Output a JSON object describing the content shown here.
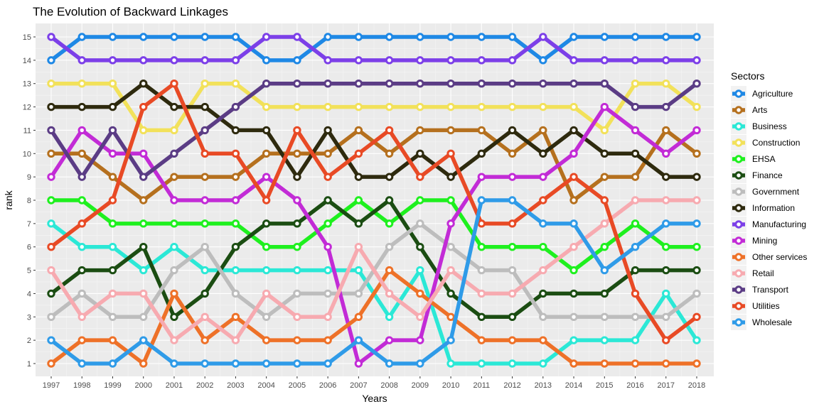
{
  "chart_data": {
    "type": "line",
    "title": "The Evolution of Backward Linkages",
    "xlabel": "Years",
    "ylabel": "rank",
    "x": [
      1997,
      1998,
      1999,
      2000,
      2001,
      2002,
      2003,
      2004,
      2005,
      2006,
      2007,
      2008,
      2009,
      2010,
      2011,
      2012,
      2013,
      2014,
      2015,
      2016,
      2017,
      2018
    ],
    "ylim": [
      1,
      15
    ],
    "yticks": [
      1,
      2,
      3,
      4,
      5,
      6,
      7,
      8,
      9,
      10,
      11,
      12,
      13,
      14,
      15
    ],
    "grid": true,
    "legend_title": "Sectors",
    "legend_position": "right",
    "series": [
      {
        "name": "Agriculture",
        "color": "#1E88E5",
        "values": [
          14,
          15,
          15,
          15,
          15,
          15,
          15,
          14,
          14,
          15,
          15,
          15,
          15,
          15,
          15,
          15,
          14,
          15,
          15,
          15,
          15,
          15
        ]
      },
      {
        "name": "Arts",
        "color": "#B5701E",
        "values": [
          10,
          10,
          9,
          8,
          9,
          9,
          9,
          10,
          10,
          10,
          11,
          10,
          11,
          11,
          11,
          10,
          11,
          8,
          9,
          9,
          11,
          10
        ]
      },
      {
        "name": "Business",
        "color": "#2BE8D6",
        "values": [
          7,
          6,
          6,
          5,
          6,
          5,
          5,
          5,
          5,
          5,
          5,
          3,
          5,
          1,
          1,
          1,
          1,
          2,
          2,
          2,
          4,
          2
        ]
      },
      {
        "name": "Construction",
        "color": "#F2E15A",
        "values": [
          13,
          13,
          13,
          11,
          11,
          13,
          13,
          12,
          12,
          12,
          12,
          12,
          12,
          12,
          12,
          12,
          12,
          12,
          11,
          13,
          13,
          12
        ]
      },
      {
        "name": "EHSA",
        "color": "#1EF01E",
        "values": [
          8,
          8,
          7,
          7,
          7,
          7,
          7,
          6,
          6,
          7,
          8,
          7,
          8,
          8,
          6,
          6,
          6,
          5,
          6,
          7,
          6,
          6
        ]
      },
      {
        "name": "Finance",
        "color": "#1B4D12",
        "values": [
          4,
          5,
          5,
          6,
          3,
          4,
          6,
          7,
          7,
          8,
          7,
          8,
          6,
          4,
          3,
          3,
          4,
          4,
          4,
          5,
          5,
          5
        ]
      },
      {
        "name": "Government",
        "color": "#BDBDBD",
        "values": [
          3,
          4,
          3,
          3,
          5,
          6,
          4,
          3,
          4,
          4,
          4,
          6,
          7,
          6,
          5,
          5,
          3,
          3,
          3,
          3,
          3,
          4
        ]
      },
      {
        "name": "Information",
        "color": "#2E2A0E",
        "values": [
          12,
          12,
          12,
          13,
          12,
          12,
          11,
          11,
          9,
          11,
          9,
          9,
          10,
          9,
          10,
          11,
          10,
          11,
          10,
          10,
          9,
          9
        ]
      },
      {
        "name": "Manufacturing",
        "color": "#7C3FE8",
        "values": [
          15,
          14,
          14,
          14,
          14,
          14,
          14,
          15,
          15,
          14,
          14,
          14,
          14,
          14,
          14,
          14,
          15,
          14,
          14,
          14,
          14,
          14
        ]
      },
      {
        "name": "Mining",
        "color": "#C22BD6",
        "values": [
          9,
          11,
          10,
          10,
          8,
          8,
          8,
          9,
          8,
          6,
          1,
          2,
          2,
          7,
          9,
          9,
          9,
          10,
          12,
          11,
          10,
          11
        ]
      },
      {
        "name": "Other services",
        "color": "#EE7128",
        "values": [
          1,
          2,
          2,
          1,
          4,
          2,
          3,
          2,
          2,
          2,
          3,
          5,
          4,
          3,
          2,
          2,
          2,
          1,
          1,
          1,
          1,
          1
        ]
      },
      {
        "name": "Retail",
        "color": "#F7AAB0",
        "values": [
          5,
          3,
          4,
          4,
          2,
          3,
          2,
          4,
          3,
          3,
          6,
          4,
          3,
          5,
          4,
          4,
          5,
          6,
          7,
          8,
          8,
          8
        ]
      },
      {
        "name": "Transport",
        "color": "#5B3C85",
        "values": [
          11,
          9,
          11,
          9,
          10,
          11,
          12,
          13,
          13,
          13,
          13,
          13,
          13,
          13,
          13,
          13,
          13,
          13,
          13,
          12,
          12,
          13
        ]
      },
      {
        "name": "Utilities",
        "color": "#E84A25",
        "values": [
          6,
          7,
          8,
          12,
          13,
          10,
          10,
          8,
          11,
          9,
          10,
          11,
          9,
          10,
          7,
          7,
          8,
          9,
          8,
          4,
          2,
          3
        ]
      },
      {
        "name": "Wholesale",
        "color": "#2F9BE8",
        "values": [
          2,
          1,
          1,
          2,
          1,
          1,
          1,
          1,
          1,
          1,
          2,
          1,
          1,
          2,
          8,
          8,
          7,
          7,
          5,
          6,
          7,
          7
        ]
      }
    ]
  }
}
